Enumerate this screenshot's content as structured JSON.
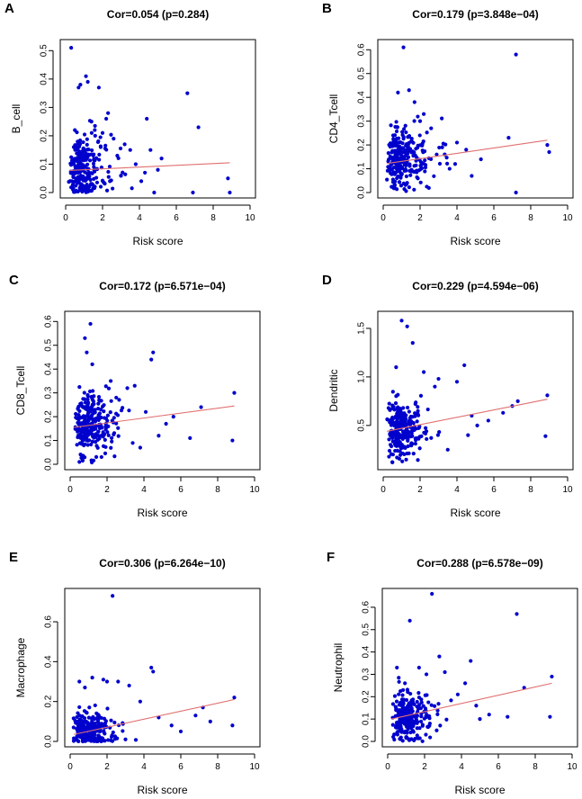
{
  "figure": {
    "colors": {
      "points": "#0000CD",
      "fit_line": "#E07070",
      "axes": "#000000"
    }
  },
  "chart_data": [
    {
      "type": "scatter",
      "panel": "A",
      "title": "Cor=0.054 (p=0.284)",
      "xlabel": "Risk score",
      "ylabel": "B_cell",
      "xlim": [
        0,
        10
      ],
      "ylim": [
        0,
        0.52
      ],
      "xticks": [
        0,
        2,
        4,
        6,
        8,
        10
      ],
      "yticks": [
        0,
        0.1,
        0.2,
        0.3,
        0.4,
        0.5
      ],
      "yticks_fmt": [
        "0.0",
        "0.1",
        "0.2",
        "0.3",
        "0.4",
        "0.5"
      ],
      "fit_line": {
        "x": [
          0.2,
          8.9
        ],
        "y": [
          0.078,
          0.105
        ]
      },
      "points": [
        [
          0.3,
          0.51
        ],
        [
          0.7,
          0.37
        ],
        [
          0.8,
          0.38
        ],
        [
          1.1,
          0.41
        ],
        [
          1.2,
          0.39
        ],
        [
          1.8,
          0.37
        ],
        [
          6.6,
          0.35
        ],
        [
          7.2,
          0.23
        ],
        [
          2.3,
          0.28
        ],
        [
          2.2,
          0.26
        ],
        [
          4.4,
          0.26
        ],
        [
          1.4,
          0.25
        ],
        [
          0.5,
          0.22
        ],
        [
          2.6,
          0.19
        ],
        [
          2.0,
          0.21
        ],
        [
          3.2,
          0.17
        ],
        [
          3.5,
          0.15
        ],
        [
          4.6,
          0.15
        ],
        [
          5.2,
          0.12
        ],
        [
          6.9,
          0.0
        ],
        [
          8.9,
          0.0
        ],
        [
          8.8,
          0.05
        ],
        [
          4.8,
          0.0
        ],
        [
          4.3,
          0.07
        ],
        [
          5.0,
          0.08
        ],
        [
          1.6,
          0.2
        ],
        [
          1.9,
          0.16
        ],
        [
          2.8,
          0.13
        ],
        [
          3.0,
          0.06
        ],
        [
          2.4,
          0.04
        ],
        [
          3.8,
          0.1
        ],
        [
          4.1,
          0.04
        ]
      ],
      "cluster": {
        "n": 260,
        "x_mode": 0.85,
        "x_spread": 1.3,
        "x_max": 3.6,
        "y_center": 0.085,
        "y_spread": 0.055,
        "y_min": 0.0,
        "seed": 11
      }
    },
    {
      "type": "scatter",
      "panel": "B",
      "title": "Cor=0.179 (p=3.848e−04)",
      "xlabel": "Risk score",
      "ylabel": "CD4_Tcell",
      "xlim": [
        0,
        10
      ],
      "ylim": [
        0,
        0.62
      ],
      "xticks": [
        0,
        2,
        4,
        6,
        8,
        10
      ],
      "yticks": [
        0,
        0.1,
        0.2,
        0.3,
        0.4,
        0.5,
        0.6
      ],
      "yticks_fmt": [
        "0.0",
        "0.1",
        "0.2",
        "0.3",
        "0.4",
        "0.5",
        "0.6"
      ],
      "fit_line": {
        "x": [
          0.2,
          8.9
        ],
        "y": [
          0.122,
          0.22
        ]
      },
      "points": [
        [
          1.1,
          0.61
        ],
        [
          7.2,
          0.58
        ],
        [
          0.8,
          0.42
        ],
        [
          1.4,
          0.43
        ],
        [
          1.7,
          0.38
        ],
        [
          2.2,
          0.33
        ],
        [
          2.0,
          0.3
        ],
        [
          4.5,
          0.18
        ],
        [
          4.0,
          0.21
        ],
        [
          3.2,
          0.19
        ],
        [
          5.3,
          0.14
        ],
        [
          6.8,
          0.23
        ],
        [
          7.2,
          0.0
        ],
        [
          8.9,
          0.2
        ],
        [
          9.0,
          0.17
        ],
        [
          2.6,
          0.27
        ],
        [
          3.6,
          0.1
        ],
        [
          4.8,
          0.07
        ],
        [
          2.9,
          0.16
        ],
        [
          3.9,
          0.12
        ]
      ],
      "cluster": {
        "n": 260,
        "x_mode": 0.9,
        "x_spread": 1.3,
        "x_max": 3.6,
        "y_center": 0.14,
        "y_spread": 0.065,
        "y_min": 0.0,
        "seed": 23
      }
    },
    {
      "type": "scatter",
      "panel": "C",
      "title": "Cor=0.172 (p=6.571e−04)",
      "xlabel": "Risk score",
      "ylabel": "CD8_Tcell",
      "xlim": [
        0,
        10
      ],
      "ylim": [
        0,
        0.62
      ],
      "xticks": [
        0,
        2,
        4,
        6,
        8,
        10
      ],
      "yticks": [
        0,
        0.1,
        0.2,
        0.3,
        0.4,
        0.5,
        0.6
      ],
      "yticks_fmt": [
        "0.0",
        "0.1",
        "0.2",
        "0.3",
        "0.4",
        "0.5",
        "0.6"
      ],
      "fit_line": {
        "x": [
          0.2,
          8.9
        ],
        "y": [
          0.155,
          0.245
        ]
      },
      "points": [
        [
          1.1,
          0.59
        ],
        [
          0.8,
          0.53
        ],
        [
          0.9,
          0.47
        ],
        [
          1.2,
          0.42
        ],
        [
          4.5,
          0.47
        ],
        [
          4.4,
          0.44
        ],
        [
          2.2,
          0.35
        ],
        [
          3.1,
          0.32
        ],
        [
          3.5,
          0.33
        ],
        [
          4.1,
          0.22
        ],
        [
          4.8,
          0.12
        ],
        [
          5.2,
          0.17
        ],
        [
          6.5,
          0.11
        ],
        [
          7.1,
          0.24
        ],
        [
          8.9,
          0.3
        ],
        [
          8.8,
          0.1
        ],
        [
          5.6,
          0.2
        ],
        [
          3.8,
          0.07
        ],
        [
          2.5,
          0.28
        ],
        [
          0.5,
          0.01
        ]
      ],
      "cluster": {
        "n": 260,
        "x_mode": 0.9,
        "x_spread": 1.3,
        "x_max": 3.6,
        "y_center": 0.17,
        "y_spread": 0.065,
        "y_min": 0.0,
        "seed": 37
      }
    },
    {
      "type": "scatter",
      "panel": "D",
      "title": "Cor=0.229 (p=4.594e−06)",
      "xlabel": "Risk score",
      "ylabel": "Dendritic",
      "xlim": [
        0,
        10
      ],
      "ylim": [
        0.1,
        1.62
      ],
      "xticks": [
        0,
        2,
        4,
        6,
        8,
        10
      ],
      "yticks": [
        0.5,
        1.0,
        1.5
      ],
      "yticks_fmt": [
        "0.5",
        "1.0",
        "1.5"
      ],
      "fit_line": {
        "x": [
          0.2,
          8.9
        ],
        "y": [
          0.44,
          0.77
        ]
      },
      "points": [
        [
          1.0,
          1.58
        ],
        [
          1.3,
          1.52
        ],
        [
          1.6,
          1.35
        ],
        [
          0.7,
          1.1
        ],
        [
          4.4,
          1.12
        ],
        [
          2.2,
          1.05
        ],
        [
          3.0,
          0.98
        ],
        [
          4.0,
          0.95
        ],
        [
          4.8,
          0.6
        ],
        [
          5.1,
          0.5
        ],
        [
          6.5,
          0.63
        ],
        [
          7.0,
          0.7
        ],
        [
          8.9,
          0.81
        ],
        [
          8.8,
          0.39
        ],
        [
          7.3,
          0.75
        ],
        [
          5.7,
          0.55
        ],
        [
          2.8,
          0.9
        ],
        [
          3.5,
          0.25
        ],
        [
          4.6,
          0.4
        ],
        [
          0.5,
          0.12
        ]
      ],
      "cluster": {
        "n": 260,
        "x_mode": 0.9,
        "x_spread": 1.3,
        "x_max": 3.6,
        "y_center": 0.48,
        "y_spread": 0.15,
        "y_min": 0.12,
        "seed": 53
      }
    },
    {
      "type": "scatter",
      "panel": "E",
      "title": "Cor=0.306 (p=6.264e−10)",
      "xlabel": "Risk score",
      "ylabel": "Macrophage",
      "xlim": [
        0,
        10
      ],
      "ylim": [
        0,
        0.74
      ],
      "xticks": [
        0,
        2,
        4,
        6,
        8,
        10
      ],
      "yticks": [
        0,
        0.2,
        0.4,
        0.6
      ],
      "yticks_fmt": [
        "0.0",
        "0.2",
        "0.4",
        "0.6"
      ],
      "fit_line": {
        "x": [
          0.2,
          8.9
        ],
        "y": [
          0.035,
          0.21
        ]
      },
      "points": [
        [
          2.3,
          0.73
        ],
        [
          4.4,
          0.37
        ],
        [
          4.5,
          0.35
        ],
        [
          1.2,
          0.32
        ],
        [
          1.8,
          0.31
        ],
        [
          2.0,
          0.3
        ],
        [
          2.6,
          0.3
        ],
        [
          3.2,
          0.28
        ],
        [
          0.5,
          0.3
        ],
        [
          0.8,
          0.27
        ],
        [
          6.8,
          0.13
        ],
        [
          7.2,
          0.17
        ],
        [
          7.6,
          0.1
        ],
        [
          8.9,
          0.22
        ],
        [
          8.8,
          0.08
        ],
        [
          5.5,
          0.08
        ],
        [
          6.0,
          0.05
        ],
        [
          4.8,
          0.12
        ],
        [
          3.8,
          0.2
        ],
        [
          3.0,
          0.01
        ]
      ],
      "cluster": {
        "n": 260,
        "x_mode": 0.9,
        "x_spread": 1.3,
        "x_max": 3.6,
        "y_center": 0.05,
        "y_spread": 0.05,
        "y_min": 0.0,
        "seed": 71
      }
    },
    {
      "type": "scatter",
      "panel": "F",
      "title": "Cor=0.288 (p=6.578e−09)",
      "xlabel": "Risk score",
      "ylabel": "Neutrophil",
      "xlim": [
        0,
        10
      ],
      "ylim": [
        0,
        0.66
      ],
      "xticks": [
        0,
        2,
        4,
        6,
        8,
        10
      ],
      "yticks": [
        0,
        0.1,
        0.2,
        0.3,
        0.4,
        0.5,
        0.6
      ],
      "yticks_fmt": [
        "0.0",
        "0.1",
        "0.2",
        "0.3",
        "0.4",
        "0.5",
        "0.6"
      ],
      "fit_line": {
        "x": [
          0.2,
          8.9
        ],
        "y": [
          0.1,
          0.26
        ]
      },
      "points": [
        [
          2.4,
          0.66
        ],
        [
          7.0,
          0.57
        ],
        [
          1.2,
          0.54
        ],
        [
          4.5,
          0.36
        ],
        [
          2.8,
          0.38
        ],
        [
          1.7,
          0.33
        ],
        [
          0.5,
          0.33
        ],
        [
          2.1,
          0.3
        ],
        [
          3.1,
          0.31
        ],
        [
          4.2,
          0.26
        ],
        [
          7.4,
          0.24
        ],
        [
          8.9,
          0.29
        ],
        [
          8.8,
          0.11
        ],
        [
          5.5,
          0.12
        ],
        [
          6.5,
          0.11
        ],
        [
          5.0,
          0.1
        ],
        [
          3.8,
          0.21
        ],
        [
          4.8,
          0.16
        ],
        [
          0.3,
          0.02
        ]
      ],
      "cluster": {
        "n": 260,
        "x_mode": 0.9,
        "x_spread": 1.3,
        "x_max": 3.6,
        "y_center": 0.11,
        "y_spread": 0.055,
        "y_min": 0.0,
        "seed": 89
      }
    }
  ]
}
